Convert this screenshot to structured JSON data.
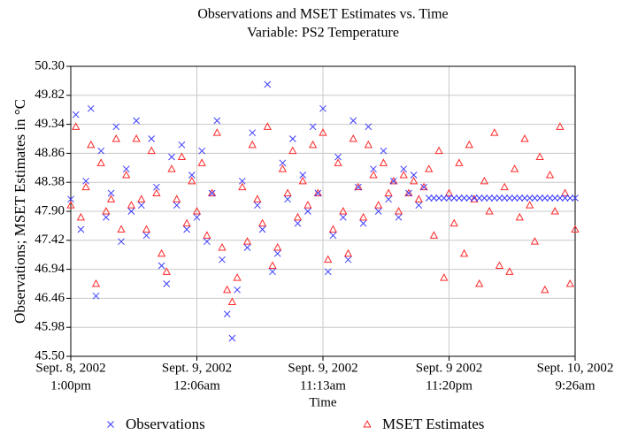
{
  "chart_data": {
    "type": "scatter",
    "title": "Observations and MSET Estimates vs. Time",
    "subtitle": "Variable: PS2 Temperature",
    "x_label": "Time",
    "y_label": "Observations; MSET Estimates in °C",
    "grid": true,
    "xlim": [
      0,
      4
    ],
    "xticks": [
      {
        "value": 0,
        "label": [
          "Sept. 8, 2002",
          "1:00pm"
        ]
      },
      {
        "value": 1,
        "label": [
          "Sept. 9, 2002",
          "12:06am"
        ]
      },
      {
        "value": 2,
        "label": [
          "Sept. 9, 2002",
          "11:13am"
        ]
      },
      {
        "value": 3,
        "label": [
          "Sept. 9 2002",
          "11:20pm"
        ]
      },
      {
        "value": 4,
        "label": [
          "Sept. 10, 2002",
          "9:26am"
        ]
      }
    ],
    "ylim": [
      45.5,
      50.3
    ],
    "yticks": [
      {
        "value": 45.5,
        "label": "45.50"
      },
      45.98,
      46.46,
      46.94,
      47.42,
      {
        "value": 47.9,
        "label": "47.90"
      },
      48.38,
      48.86,
      49.34,
      49.82,
      {
        "value": 50.3,
        "label": "50.30"
      }
    ],
    "x": [
      0,
      0.04,
      0.08,
      0.12,
      0.16,
      0.2,
      0.24,
      0.28,
      0.32,
      0.36,
      0.4,
      0.44,
      0.48,
      0.52,
      0.56,
      0.6,
      0.64,
      0.68,
      0.72,
      0.76,
      0.8,
      0.84,
      0.88,
      0.92,
      0.96,
      1,
      1.04,
      1.08,
      1.12,
      1.16,
      1.2,
      1.24,
      1.28,
      1.32,
      1.36,
      1.4,
      1.44,
      1.48,
      1.52,
      1.56,
      1.6,
      1.64,
      1.68,
      1.72,
      1.76,
      1.8,
      1.84,
      1.88,
      1.92,
      1.96,
      2,
      2.04,
      2.08,
      2.12,
      2.16,
      2.2,
      2.24,
      2.28,
      2.32,
      2.36,
      2.4,
      2.44,
      2.48,
      2.52,
      2.56,
      2.6,
      2.64,
      2.68,
      2.72,
      2.76,
      2.8,
      2.84,
      2.88,
      2.92,
      2.96,
      3,
      3.04,
      3.08,
      3.12,
      3.16,
      3.2,
      3.24,
      3.28,
      3.32,
      3.36,
      3.4,
      3.44,
      3.48,
      3.52,
      3.56,
      3.6,
      3.64,
      3.68,
      3.72,
      3.76,
      3.8,
      3.84,
      3.88,
      3.92,
      3.96,
      4
    ],
    "series": [
      {
        "name": "Observations",
        "color": "#3b3bff",
        "marker": "x",
        "values": [
          48.1,
          49.5,
          47.6,
          48.4,
          49.6,
          46.5,
          48.9,
          47.8,
          48.2,
          49.3,
          47.4,
          48.6,
          47.9,
          49.4,
          48.0,
          47.5,
          49.1,
          48.3,
          47.0,
          46.7,
          48.8,
          48.0,
          49.0,
          47.6,
          48.5,
          47.8,
          48.9,
          47.4,
          48.2,
          49.4,
          47.1,
          46.2,
          45.8,
          46.6,
          48.4,
          47.3,
          49.2,
          48.0,
          47.6,
          50.0,
          46.9,
          47.2,
          48.7,
          48.1,
          49.1,
          47.7,
          48.5,
          47.9,
          49.3,
          48.2,
          49.6,
          46.9,
          47.5,
          48.8,
          47.8,
          47.1,
          49.4,
          48.3,
          47.7,
          49.3,
          48.6,
          47.9,
          48.9,
          48.1,
          48.4,
          47.8,
          48.6,
          48.2,
          48.5,
          48.0,
          48.3,
          48.12,
          48.12,
          48.12,
          48.12,
          48.12,
          48.12,
          48.12,
          48.12,
          48.12,
          48.12,
          48.12,
          48.12,
          48.12,
          48.12,
          48.12,
          48.12,
          48.12,
          48.12,
          48.12,
          48.12,
          48.12,
          48.12,
          48.12,
          48.12,
          48.12,
          48.12,
          48.12,
          48.12,
          48.12,
          48.12
        ]
      },
      {
        "name": "MSET Estimates",
        "color": "#ff2a2a",
        "marker": "triangle",
        "values": [
          48.0,
          49.3,
          47.8,
          48.3,
          49.0,
          46.7,
          48.7,
          47.9,
          48.1,
          49.1,
          47.6,
          48.5,
          48.0,
          49.1,
          48.1,
          47.6,
          48.9,
          48.2,
          47.2,
          46.9,
          48.6,
          48.1,
          48.8,
          47.7,
          48.4,
          47.9,
          48.7,
          47.5,
          48.2,
          49.2,
          47.3,
          46.6,
          46.4,
          46.8,
          48.3,
          47.4,
          49.0,
          48.1,
          47.7,
          49.3,
          47.0,
          47.3,
          48.6,
          48.2,
          48.9,
          47.8,
          48.4,
          48.0,
          49.0,
          48.2,
          49.2,
          47.1,
          47.6,
          48.7,
          47.9,
          47.2,
          49.1,
          48.3,
          47.8,
          49.0,
          48.5,
          48.0,
          48.7,
          48.2,
          48.4,
          47.9,
          48.5,
          48.2,
          48.4,
          48.1,
          48.3,
          48.6,
          47.5,
          48.9,
          46.8,
          48.2,
          47.7,
          48.7,
          47.2,
          49.0,
          48.1,
          46.7,
          48.4,
          47.9,
          49.2,
          47.0,
          48.3,
          46.9,
          48.6,
          47.8,
          49.1,
          48.0,
          47.4,
          48.8,
          46.6,
          48.5,
          47.9,
          49.3,
          48.2,
          46.7,
          47.6
        ]
      }
    ]
  }
}
